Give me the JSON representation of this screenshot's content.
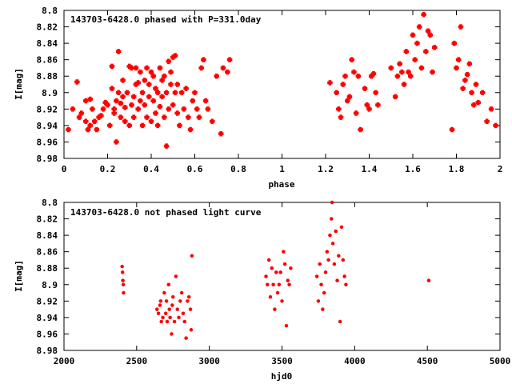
{
  "chart_data": [
    {
      "type": "scatter",
      "title": "143703-6428.0 phased with P=331.0day",
      "xlabel": "phase",
      "ylabel": "I[mag]",
      "xlim": [
        0,
        2
      ],
      "ylim": [
        8.98,
        8.8
      ],
      "y_inverted": true,
      "grid": false,
      "legend": "none",
      "color": "#ff0000",
      "marker": "filled-circle",
      "x_ticks": [
        "0",
        "0.2",
        "0.4",
        "0.6",
        "0.8",
        "1",
        "1.2",
        "1.4",
        "1.6",
        "1.8",
        "2"
      ],
      "y_ticks": [
        "8.8",
        "8.82",
        "8.84",
        "8.86",
        "8.88",
        "8.9",
        "8.92",
        "8.94",
        "8.96",
        "8.98"
      ],
      "x": [
        0.02,
        0.04,
        0.06,
        0.07,
        0.08,
        0.1,
        0.1,
        0.11,
        0.12,
        0.12,
        0.13,
        0.14,
        0.15,
        0.16,
        0.17,
        0.18,
        0.19,
        0.2,
        0.21,
        0.22,
        0.22,
        0.23,
        0.23,
        0.24,
        0.24,
        0.25,
        0.25,
        0.26,
        0.26,
        0.27,
        0.27,
        0.28,
        0.28,
        0.29,
        0.3,
        0.3,
        0.31,
        0.31,
        0.32,
        0.32,
        0.33,
        0.33,
        0.34,
        0.34,
        0.35,
        0.35,
        0.36,
        0.36,
        0.37,
        0.37,
        0.38,
        0.38,
        0.39,
        0.39,
        0.4,
        0.4,
        0.41,
        0.41,
        0.42,
        0.42,
        0.43,
        0.43,
        0.44,
        0.44,
        0.45,
        0.45,
        0.46,
        0.46,
        0.47,
        0.47,
        0.48,
        0.48,
        0.49,
        0.49,
        0.5,
        0.5,
        0.51,
        0.51,
        0.52,
        0.52,
        0.53,
        0.54,
        0.55,
        0.56,
        0.57,
        0.58,
        0.59,
        0.6,
        0.61,
        0.62,
        0.63,
        0.64,
        0.65,
        0.66,
        0.68,
        0.7,
        0.72,
        0.73,
        0.75,
        0.76,
        1.22,
        1.25,
        1.26,
        1.27,
        1.28,
        1.29,
        1.3,
        1.31,
        1.32,
        1.33,
        1.34,
        1.35,
        1.36,
        1.38,
        1.39,
        1.4,
        1.41,
        1.42,
        1.43,
        1.44,
        1.5,
        1.52,
        1.53,
        1.54,
        1.55,
        1.56,
        1.57,
        1.58,
        1.59,
        1.6,
        1.61,
        1.62,
        1.63,
        1.64,
        1.65,
        1.66,
        1.67,
        1.68,
        1.69,
        1.7,
        1.78,
        1.79,
        1.8,
        1.81,
        1.82,
        1.83,
        1.84,
        1.85,
        1.86,
        1.87,
        1.88,
        1.89,
        1.9,
        1.92,
        1.94,
        1.96,
        1.98
      ],
      "y": [
        8.945,
        8.92,
        8.887,
        8.93,
        8.925,
        8.935,
        8.91,
        8.945,
        8.908,
        8.94,
        8.92,
        8.935,
        8.945,
        8.93,
        8.928,
        8.92,
        8.912,
        8.915,
        8.94,
        8.895,
        8.868,
        8.925,
        8.92,
        8.91,
        8.96,
        8.85,
        8.9,
        8.913,
        8.93,
        8.885,
        8.905,
        8.918,
        8.935,
        8.9,
        8.94,
        8.868,
        8.915,
        8.87,
        8.93,
        8.905,
        8.89,
        8.87,
        8.92,
        8.888,
        8.91,
        8.875,
        8.94,
        8.9,
        8.885,
        8.915,
        8.93,
        8.87,
        8.905,
        8.89,
        8.935,
        8.875,
        8.91,
        8.88,
        8.925,
        8.895,
        8.94,
        8.9,
        8.87,
        8.917,
        8.885,
        8.905,
        8.93,
        8.88,
        8.965,
        8.9,
        8.92,
        8.862,
        8.875,
        8.89,
        8.915,
        8.857,
        8.9,
        8.855,
        8.89,
        8.925,
        8.94,
        8.9,
        8.92,
        8.895,
        8.93,
        8.945,
        8.91,
        8.9,
        8.92,
        8.93,
        8.87,
        8.86,
        8.91,
        8.92,
        8.935,
        8.88,
        8.95,
        8.87,
        8.875,
        8.86,
        8.888,
        8.9,
        8.92,
        8.93,
        8.89,
        8.88,
        8.91,
        8.905,
        8.86,
        8.875,
        8.925,
        8.88,
        8.945,
        8.895,
        8.915,
        8.92,
        8.88,
        8.877,
        8.9,
        8.915,
        8.87,
        8.905,
        8.88,
        8.865,
        8.875,
        8.89,
        8.85,
        8.875,
        8.88,
        8.83,
        8.86,
        8.84,
        8.82,
        8.87,
        8.805,
        8.85,
        8.825,
        8.83,
        8.875,
        8.845,
        8.945,
        8.84,
        8.87,
        8.86,
        8.82,
        8.895,
        8.885,
        8.878,
        8.865,
        8.9,
        8.915,
        8.89,
        8.912,
        8.9,
        8.935,
        8.92,
        8.94
      ]
    },
    {
      "type": "scatter",
      "title": "143703-6428.0 not phased light curve",
      "xlabel": "hjd0",
      "ylabel": "I[mag]",
      "xlim": [
        2000,
        5000
      ],
      "ylim": [
        8.98,
        8.8
      ],
      "y_inverted": true,
      "grid": false,
      "legend": "none",
      "color": "#ff0000",
      "marker": "filled-circle",
      "x_ticks": [
        "2000",
        "2500",
        "3000",
        "3500",
        "4000",
        "4500",
        "5000"
      ],
      "y_ticks": [
        "8.8",
        "8.82",
        "8.84",
        "8.86",
        "8.88",
        "8.9",
        "8.92",
        "8.94",
        "8.96",
        "8.98"
      ],
      "x": [
        2400,
        2403,
        2405,
        2408,
        2410,
        2640,
        2650,
        2660,
        2665,
        2670,
        2680,
        2690,
        2700,
        2705,
        2710,
        2720,
        2725,
        2730,
        2740,
        2745,
        2750,
        2760,
        2770,
        2780,
        2790,
        2800,
        2810,
        2820,
        2830,
        2840,
        2850,
        2860,
        2870,
        2875,
        2880,
        3390,
        3400,
        3410,
        3420,
        3430,
        3440,
        3450,
        3460,
        3470,
        3480,
        3490,
        3500,
        3510,
        3520,
        3530,
        3540,
        3550,
        3560,
        3740,
        3750,
        3760,
        3770,
        3780,
        3790,
        3800,
        3810,
        3820,
        3830,
        3840,
        3845,
        3850,
        3860,
        3870,
        3880,
        3890,
        3900,
        3910,
        3920,
        3930,
        3940,
        4510
      ],
      "y": [
        8.878,
        8.885,
        8.895,
        8.9,
        8.91,
        8.93,
        8.935,
        8.925,
        8.92,
        8.945,
        8.94,
        8.91,
        8.935,
        8.92,
        8.945,
        8.9,
        8.93,
        8.94,
        8.96,
        8.925,
        8.915,
        8.945,
        8.89,
        8.93,
        8.94,
        8.92,
        8.91,
        8.935,
        8.945,
        8.965,
        8.92,
        8.915,
        8.93,
        8.955,
        8.865,
        8.89,
        8.9,
        8.87,
        8.915,
        8.88,
        8.9,
        8.93,
        8.885,
        8.91,
        8.9,
        8.885,
        8.92,
        8.86,
        8.875,
        8.95,
        8.895,
        8.9,
        8.88,
        8.89,
        8.92,
        8.875,
        8.9,
        8.93,
        8.91,
        8.885,
        8.86,
        8.87,
        8.84,
        8.82,
        8.8,
        8.85,
        8.875,
        8.835,
        8.895,
        8.865,
        8.945,
        8.83,
        8.87,
        8.89,
        8.9,
        8.895
      ]
    }
  ]
}
